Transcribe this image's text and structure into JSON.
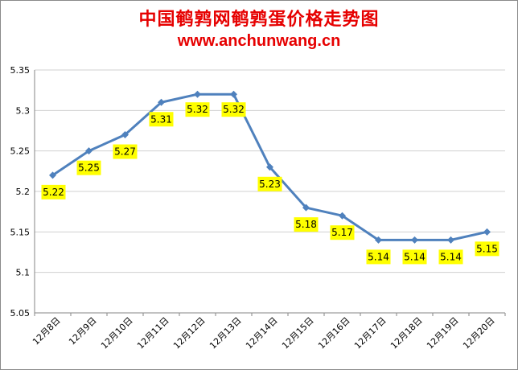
{
  "header": {
    "title": "中国鹌鹑网鹌鹑蛋价格走势图",
    "subtitle": "www.anchunwang.cn"
  },
  "colors": {
    "line": "#4f81bd",
    "label_bg": "#ffff00",
    "title": "#e60000",
    "grid": "#d0d0d0"
  },
  "chart_data": {
    "type": "line",
    "title": "中国鹌鹑网鹌鹑蛋价格走势图",
    "subtitle": "www.anchunwang.cn",
    "categories": [
      "12月8日",
      "12月9日",
      "12月10日",
      "12月11日",
      "12月12日",
      "12月13日",
      "12月14日",
      "12月15日",
      "12月16日",
      "12月17日",
      "12月18日",
      "12月19日",
      "12月20日"
    ],
    "series": [
      {
        "values": [
          5.22,
          5.25,
          5.27,
          5.31,
          5.32,
          5.32,
          5.23,
          5.18,
          5.17,
          5.14,
          5.14,
          5.14,
          5.15
        ]
      }
    ],
    "data_labels": [
      "5.22",
      "5.25",
      "5.27",
      "5.31",
      "5.32",
      "5.32",
      "5.23",
      "5.18",
      "5.17",
      "5.14",
      "5.14",
      "5.14",
      "5.15"
    ],
    "ylim": [
      5.05,
      5.35
    ],
    "yticks": [
      "5.05",
      "5.1",
      "5.15",
      "5.2",
      "5.25",
      "5.3",
      "5.35"
    ],
    "grid": true,
    "legend": "none"
  }
}
